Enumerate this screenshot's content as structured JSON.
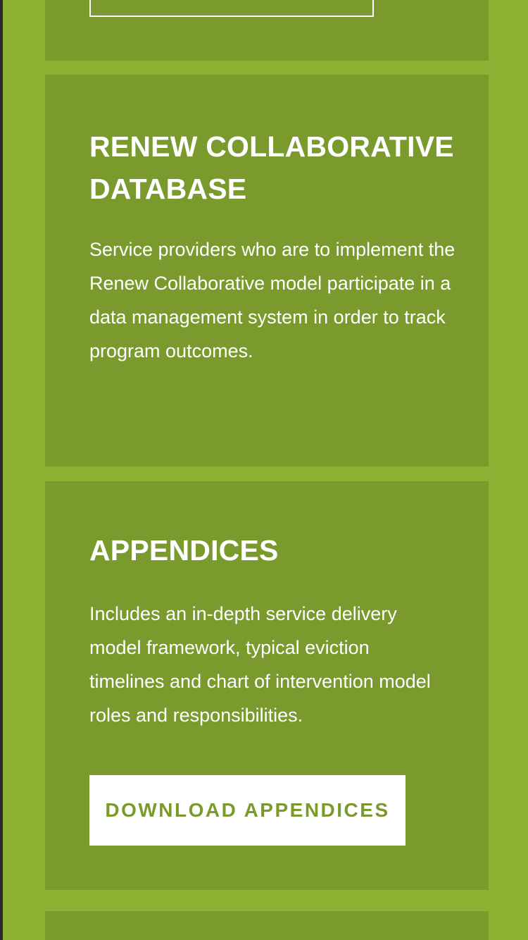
{
  "sections": {
    "database": {
      "title": "RENEW COLLABORATIVE DATABASE",
      "description": "Service providers who are to implement the Renew Collaborative model participate in a data management system in order to track program outcomes."
    },
    "appendices": {
      "title": "APPENDICES",
      "description": "Includes an in-depth service delivery model framework, typical eviction timelines and chart of intervention model roles and responsibilities.",
      "button_label": "DOWNLOAD APPENDICES"
    }
  },
  "colors": {
    "background": "#8db132",
    "card": "#7a9a2d",
    "button_bg": "#ffffff",
    "button_text": "#7a9a2d"
  }
}
